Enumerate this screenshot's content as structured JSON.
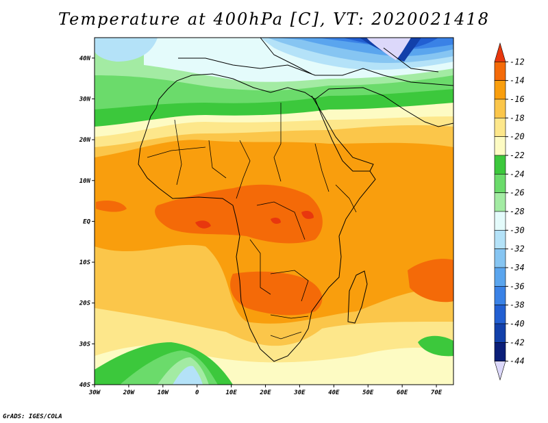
{
  "header": {
    "title": "Temperature at 400hPa [C], VT: 2020021418"
  },
  "footer": {
    "credit": "GrADS: IGES/COLA"
  },
  "map": {
    "lon_range": [
      -30,
      75
    ],
    "lat_range": [
      -40,
      45
    ],
    "lon_ticks": [
      {
        "value": -30,
        "label": "30W"
      },
      {
        "value": -20,
        "label": "20W"
      },
      {
        "value": -10,
        "label": "10W"
      },
      {
        "value": 0,
        "label": "0"
      },
      {
        "value": 10,
        "label": "10E"
      },
      {
        "value": 20,
        "label": "20E"
      },
      {
        "value": 30,
        "label": "30E"
      },
      {
        "value": 40,
        "label": "40E"
      },
      {
        "value": 50,
        "label": "50E"
      },
      {
        "value": 60,
        "label": "60E"
      },
      {
        "value": 70,
        "label": "70E"
      }
    ],
    "lat_ticks": [
      {
        "value": 40,
        "label": "40N"
      },
      {
        "value": 30,
        "label": "30N"
      },
      {
        "value": 20,
        "label": "20N"
      },
      {
        "value": 10,
        "label": "10N"
      },
      {
        "value": 0,
        "label": "EQ"
      },
      {
        "value": -10,
        "label": "10S"
      },
      {
        "value": -20,
        "label": "20S"
      },
      {
        "value": -30,
        "label": "30S"
      },
      {
        "value": -40,
        "label": "40S"
      }
    ]
  },
  "colorbar": {
    "labels": [
      "-12",
      "-14",
      "-16",
      "-18",
      "-20",
      "-22",
      "-24",
      "-26",
      "-28",
      "-30",
      "-32",
      "-34",
      "-36",
      "-38",
      "-40",
      "-42",
      "-44"
    ],
    "colors": [
      "#e8370e",
      "#f46a08",
      "#f99e0d",
      "#fbc64a",
      "#fde78b",
      "#fdfbc3",
      "#3cc83c",
      "#6bdb6b",
      "#a3eba3",
      "#e4fbfb",
      "#b4e2f8",
      "#86c5f2",
      "#5aa5ee",
      "#3a82e6",
      "#225fd2",
      "#1240aa",
      "#0a1e78",
      "#dcd8fa"
    ]
  }
}
